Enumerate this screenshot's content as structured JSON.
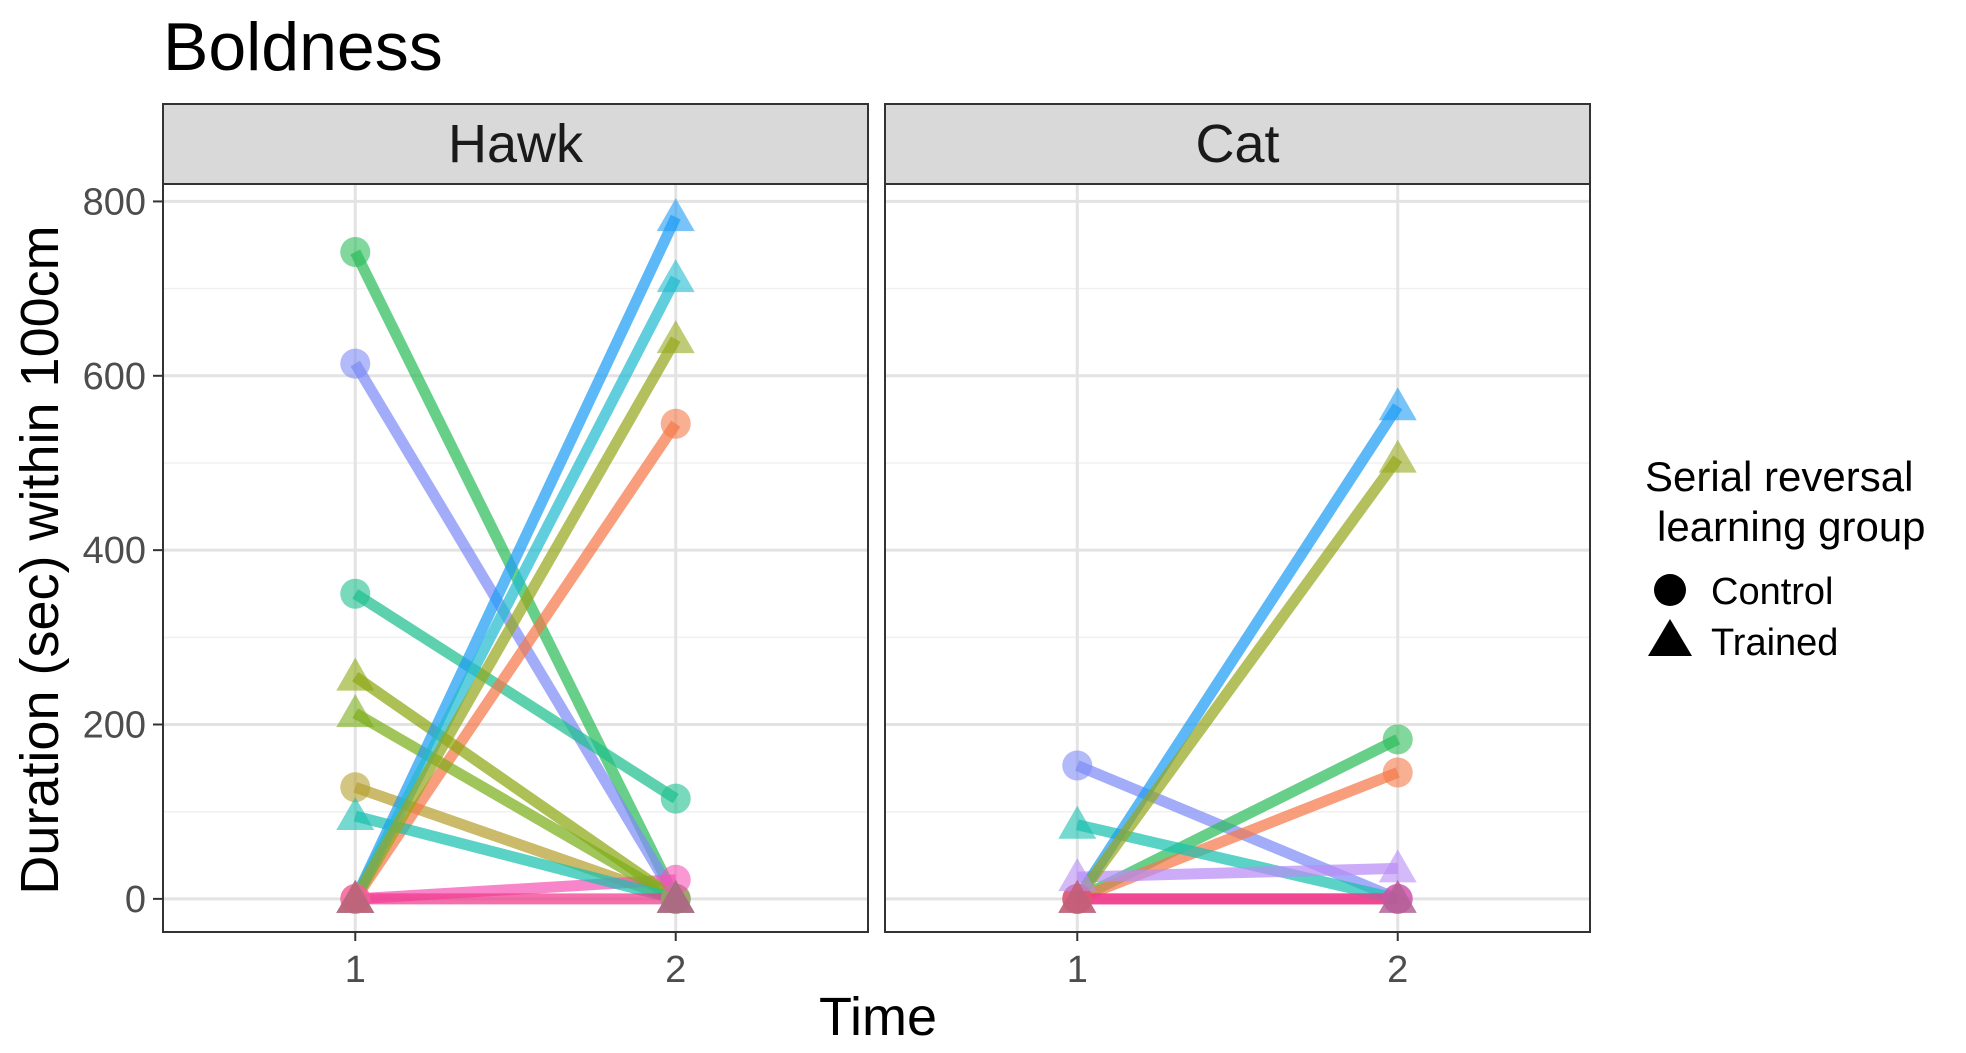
{
  "chart_data": {
    "type": "line",
    "title": "Boldness",
    "xlabel": "Time",
    "ylabel": "Duration (sec) within 100cm",
    "x_ticks": [
      "1",
      "2"
    ],
    "y_ticks": [
      "0",
      "200",
      "400",
      "600",
      "800"
    ],
    "xlim": [
      0.4,
      2.6
    ],
    "ylim": [
      -38,
      820
    ],
    "grid": true,
    "legend": {
      "title_line1": "Serial reversal",
      "title_line2": "learning group",
      "placement": "right",
      "entries": [
        {
          "label": "Control",
          "shape": "circle"
        },
        {
          "label": "Trained",
          "shape": "triangle"
        }
      ]
    },
    "panels": [
      {
        "label": "Hawk",
        "series": [
          {
            "group": "Control",
            "color": "#2EBD5B",
            "values": [
              742,
              0
            ]
          },
          {
            "group": "Control",
            "color": "#7E8CF5",
            "values": [
              614,
              0
            ]
          },
          {
            "group": "Control",
            "color": "#1EBF8E",
            "values": [
              350,
              115
            ]
          },
          {
            "group": "Control",
            "color": "#B5A030",
            "values": [
              128,
              0
            ]
          },
          {
            "group": "Control",
            "color": "#F5794A",
            "values": [
              0,
              545
            ]
          },
          {
            "group": "Control",
            "color": "#F554B5",
            "values": [
              0,
              22
            ]
          },
          {
            "group": "Trained",
            "color": "#8CA814",
            "values": [
              255,
              0
            ]
          },
          {
            "group": "Trained",
            "color": "#7CAE1A",
            "values": [
              213,
              0
            ]
          },
          {
            "group": "Trained",
            "color": "#1AC0B0",
            "values": [
              95,
              0
            ]
          },
          {
            "group": "Trained",
            "color": "#1E9CF5",
            "values": [
              0,
              782
            ]
          },
          {
            "group": "Trained",
            "color": "#22BBD0",
            "values": [
              0,
              712
            ]
          },
          {
            "group": "Trained",
            "color": "#96A81E",
            "values": [
              0,
              642
            ]
          },
          {
            "group": "Trained",
            "color": "#F0398A",
            "values": [
              0,
              0
            ]
          }
        ]
      },
      {
        "label": "Cat",
        "series": [
          {
            "group": "Control",
            "color": "#7E8CF5",
            "values": [
              153,
              0
            ]
          },
          {
            "group": "Control",
            "color": "#2EBD5B",
            "values": [
              0,
              183
            ]
          },
          {
            "group": "Control",
            "color": "#F5794A",
            "values": [
              0,
              145
            ]
          },
          {
            "group": "Control",
            "color": "#F0398A",
            "values": [
              0,
              0
            ]
          },
          {
            "group": "Trained",
            "color": "#1AC0B0",
            "values": [
              85,
              0
            ]
          },
          {
            "group": "Trained",
            "color": "#B98CF5",
            "values": [
              25,
              35
            ]
          },
          {
            "group": "Trained",
            "color": "#1E9CF5",
            "values": [
              0,
              565
            ]
          },
          {
            "group": "Trained",
            "color": "#96A81E",
            "values": [
              0,
              505
            ]
          },
          {
            "group": "Trained",
            "color": "#F0398A",
            "values": [
              0,
              0
            ]
          }
        ]
      }
    ]
  }
}
